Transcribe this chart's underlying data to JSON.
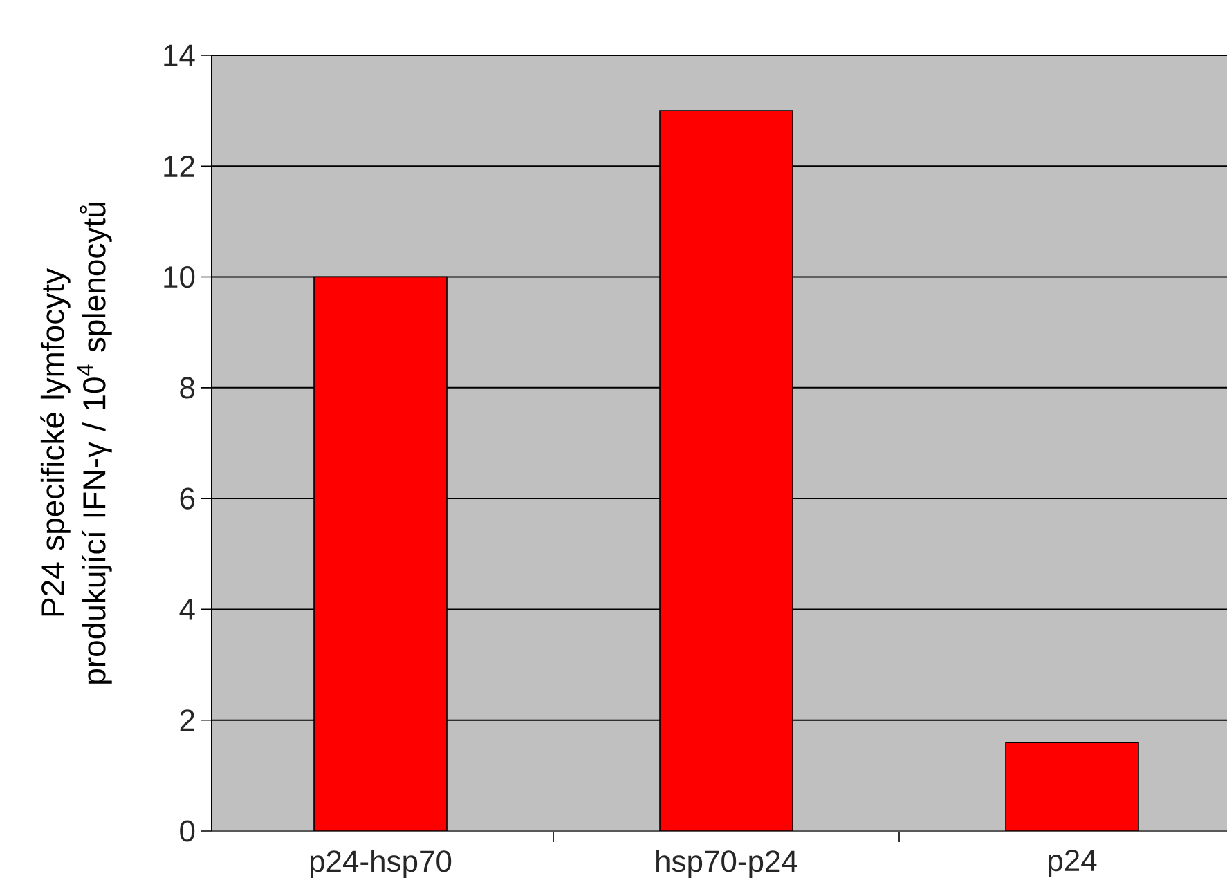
{
  "chart_data": {
    "type": "bar",
    "ylabel": "P24 specifické lymfocyty produkující IFN-γ / 10$^{4}$ splenocytů",
    "categories": [
      "p24-hsp70",
      "hsp70-p24",
      "p24"
    ],
    "values": [
      10,
      13,
      1.6
    ],
    "color": "#ff0000",
    "ylim": [
      0,
      14
    ],
    "yticks": [
      0,
      2,
      4,
      6,
      8,
      10,
      12,
      14
    ],
    "grid": "y"
  }
}
